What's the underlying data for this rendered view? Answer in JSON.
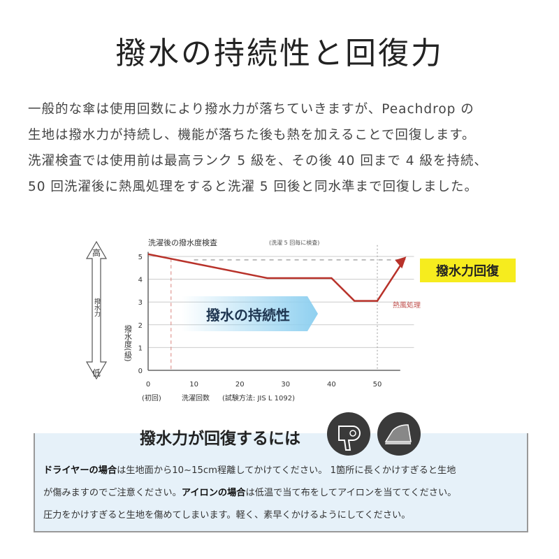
{
  "title": "撥水の持続性と回復力",
  "intro": [
    "一般的な傘は使用回数により撥水力が落ちていきますが、Peachdrop の",
    "生地は撥水力が持続し、機能が落ちた後も熱を加えることで回復します。",
    "洗濯検査では使用前は最高ランク 5 級を、その後 40 回まで 4 級を持続、",
    "50 回洗濯後に熱風処理をすると洗濯 5 回後と同水準まで回復しました。"
  ],
  "chart_data": {
    "type": "line",
    "title": "洗濯後の撥水度検査",
    "subtitle": "(洗濯 5 回毎に検査)",
    "xlabel": "洗濯回数",
    "xnote": "(試験方法: JIS L 1092)",
    "x_first_note": "(初回)",
    "ylabel": "撥水度(級)",
    "side_axis": {
      "label": "撥水力",
      "high": "高",
      "low": "低"
    },
    "xlim": [
      0,
      55
    ],
    "ylim": [
      0,
      5
    ],
    "xticks": [
      0,
      10,
      20,
      30,
      40,
      50
    ],
    "yticks": [
      0,
      1,
      2,
      3,
      4,
      5
    ],
    "grid": true,
    "x": [
      0,
      26,
      40,
      45,
      50,
      56
    ],
    "y": [
      5.1,
      4.05,
      4.05,
      3.05,
      3.05,
      4.9
    ],
    "reference_level": 4.85,
    "annotations": {
      "heat": "熱風処理",
      "sustain": "撥水の持続性",
      "recover": "撥水力回復"
    },
    "colors": {
      "line": "#b8322a",
      "highlight": "#f6ec1e",
      "sustain_arrow": "#8fd0f0"
    }
  },
  "recovery": {
    "title": "撥水力が回復するには",
    "icons": [
      "hair-dryer-icon",
      "iron-icon"
    ],
    "lines": [
      {
        "bold": "ドライヤーの場合",
        "text": "は生地面から10~15cm程離してかけてください。 1箇所に長くかけすぎると生地"
      },
      {
        "text": "が傷みますのでご注意ください。",
        "bold": "アイロンの場合",
        "text2": "は低温で当て布をしてアイロンを当ててください。"
      },
      {
        "text": "圧力をかけすぎると生地を傷めてしまいます。軽く、素早くかけるようにしてください。"
      }
    ]
  }
}
